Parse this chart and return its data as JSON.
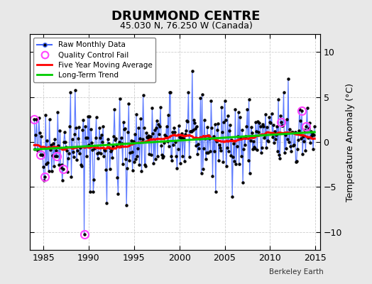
{
  "title": "DRUMMOND CENTRE",
  "subtitle": "45.030 N, 76.250 W (Canada)",
  "ylabel": "Temperature Anomaly (°C)",
  "xlabel_credit": "Berkeley Earth",
  "xlim": [
    1983.5,
    2015.5
  ],
  "ylim": [
    -12,
    12
  ],
  "yticks": [
    -10,
    -5,
    0,
    5,
    10
  ],
  "xticks": [
    1985,
    1990,
    1995,
    2000,
    2005,
    2010,
    2015
  ],
  "bg_color": "#e8e8e8",
  "plot_bg_color": "#ffffff",
  "raw_line_color": "#4466ff",
  "raw_dot_color": "#000000",
  "moving_avg_color": "#ff0000",
  "trend_color": "#00cc00",
  "qc_fail_color": "#ff44ff",
  "title_fontsize": 13,
  "subtitle_fontsize": 9,
  "seed": 42
}
